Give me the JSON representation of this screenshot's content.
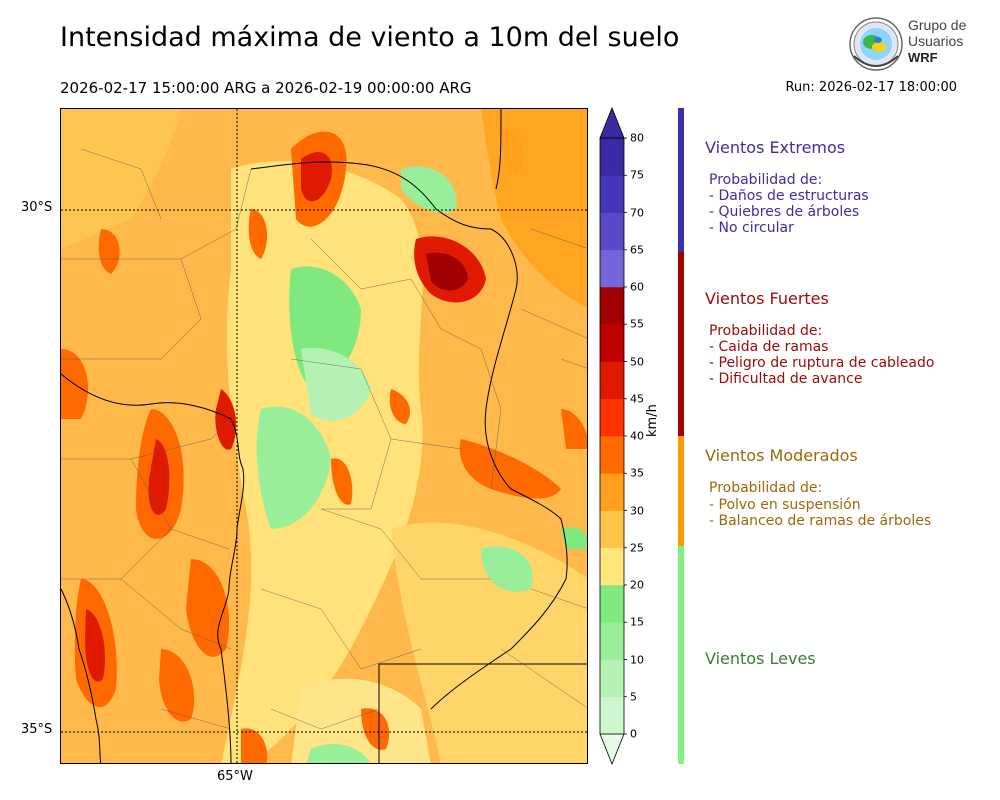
{
  "title": "Intensidad máxima de viento a 10m del suelo",
  "period": "2026-02-17 15:00:00 ARG  a  2026-02-19 00:00:00 ARG",
  "run": "Run: 2026-02-17 18:00:00",
  "logo": {
    "line1": "Grupo de",
    "line2": "Usuarios",
    "line3": "WRF"
  },
  "map": {
    "lat_labels": [
      "30°S",
      "35°S"
    ],
    "lon_label": "65°W"
  },
  "colorbar": {
    "unit": "km/h",
    "ticks": [
      "0",
      "5",
      "10",
      "15",
      "20",
      "25",
      "30",
      "35",
      "40",
      "45",
      "50",
      "55",
      "60",
      "65",
      "70",
      "75",
      "80"
    ],
    "colors": [
      "#e6fbe6",
      "#ccf7cc",
      "#b3f2b3",
      "#99ee99",
      "#7fe97f",
      "#ffe77a",
      "#ffc44a",
      "#ff9f1c",
      "#ff6a00",
      "#ff3300",
      "#e01a00",
      "#c00000",
      "#a00000",
      "#7466d8",
      "#5a4ac8",
      "#4535b8",
      "#3a2aa4"
    ]
  },
  "categories": [
    {
      "title": "Vientos Extremos",
      "color": "#3a2fa8",
      "lines": [
        "Probabilidad de:",
        "- Daños de estructuras",
        "- Quiebres de árboles",
        "- No circular"
      ]
    },
    {
      "title": "Vientos Fuertes",
      "color": "#9b0a0a",
      "lines": [
        "Probabilidad de:",
        "- Caida de ramas",
        "- Peligro de ruptura de cableado",
        "- Dificultad de avance"
      ]
    },
    {
      "title": "Vientos Moderados",
      "color": "#a0670a",
      "lines": [
        "Probabilidad de:",
        "- Polvo en suspensión",
        "- Balanceo de ramas de árboles"
      ]
    },
    {
      "title": "Vientos Leves",
      "color": "#3b7d35",
      "lines": []
    }
  ],
  "category_bar_colors": [
    "#3a30b0",
    "#a00000",
    "#ff9a00",
    "#7ef07e"
  ]
}
